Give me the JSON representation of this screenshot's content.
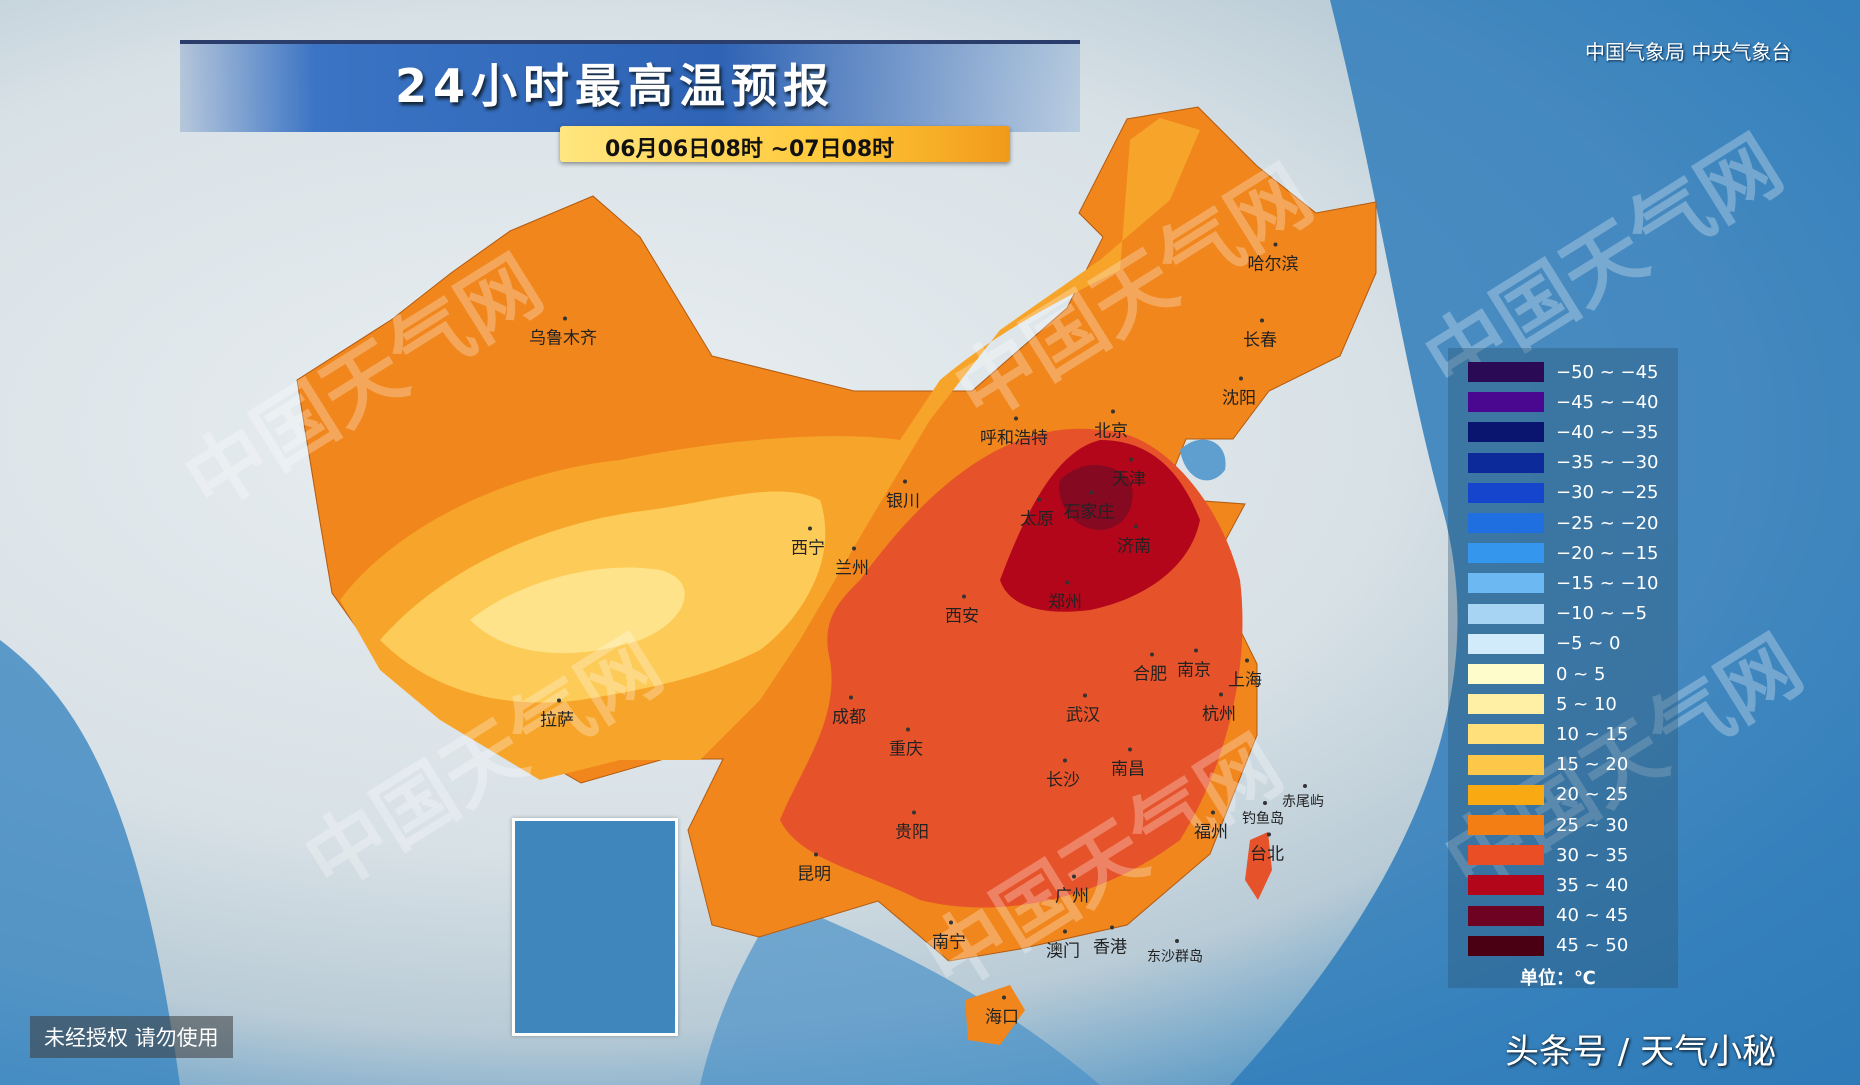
{
  "header": {
    "title": "24小时最高温预报",
    "date_range": "06月06日08时 ~07日08时",
    "organization": "中国气象局 中央气象台"
  },
  "cities": [
    {
      "name": "乌鲁木齐"
    },
    {
      "name": "哈尔滨"
    },
    {
      "name": "长春"
    },
    {
      "name": "沈阳"
    },
    {
      "name": "呼和浩特"
    },
    {
      "name": "北京"
    },
    {
      "name": "天津"
    },
    {
      "name": "银川"
    },
    {
      "name": "太原"
    },
    {
      "name": "石家庄"
    },
    {
      "name": "济南"
    },
    {
      "name": "西宁"
    },
    {
      "name": "兰州"
    },
    {
      "name": "郑州"
    },
    {
      "name": "西安"
    },
    {
      "name": "合肥"
    },
    {
      "name": "南京"
    },
    {
      "name": "上海"
    },
    {
      "name": "拉萨"
    },
    {
      "name": "成都"
    },
    {
      "name": "武汉"
    },
    {
      "name": "杭州"
    },
    {
      "name": "重庆"
    },
    {
      "name": "长沙"
    },
    {
      "name": "南昌"
    },
    {
      "name": "贵阳"
    },
    {
      "name": "福州"
    },
    {
      "name": "赤尾屿"
    },
    {
      "name": "钓鱼岛"
    },
    {
      "name": "台北"
    },
    {
      "name": "昆明"
    },
    {
      "name": "广州"
    },
    {
      "name": "南宁"
    },
    {
      "name": "澳门"
    },
    {
      "name": "香港"
    },
    {
      "name": "东沙群岛"
    },
    {
      "name": "海口"
    }
  ],
  "legend": {
    "unit": "单位：℃",
    "items": [
      {
        "label": "−50 ~ −45",
        "color": "#2a0a55"
      },
      {
        "label": "−45 ~ −40",
        "color": "#4a0890"
      },
      {
        "label": "−40 ~ −35",
        "color": "#0a1570"
      },
      {
        "label": "−35 ~ −30",
        "color": "#0c2a9a"
      },
      {
        "label": "−30 ~ −25",
        "color": "#1445cc"
      },
      {
        "label": "−25 ~ −20",
        "color": "#1f6fe0"
      },
      {
        "label": "−20 ~ −15",
        "color": "#3596ee"
      },
      {
        "label": "−15 ~ −10",
        "color": "#6cb8f2"
      },
      {
        "label": "−10 ~ −5",
        "color": "#a8d4f4"
      },
      {
        "label": "−5 ~ 0",
        "color": "#d2ebfa"
      },
      {
        "label": "0 ~ 5",
        "color": "#fffccb"
      },
      {
        "label": "5 ~ 10",
        "color": "#fff0a6"
      },
      {
        "label": "10 ~ 15",
        "color": "#ffe07a"
      },
      {
        "label": "15 ~ 20",
        "color": "#fdc84a"
      },
      {
        "label": "20 ~ 25",
        "color": "#f9a912"
      },
      {
        "label": "25 ~ 30",
        "color": "#f37f14"
      },
      {
        "label": "30 ~ 35",
        "color": "#e94e25"
      },
      {
        "label": "35 ~ 40",
        "color": "#b4061a"
      },
      {
        "label": "40 ~ 45",
        "color": "#6e0222"
      },
      {
        "label": "45 ~ 50",
        "color": "#4a0012"
      }
    ]
  },
  "watermark": "中国天气网",
  "footer": {
    "notice": "未经授权 请勿使用",
    "source": "头条号 / 天气小秘"
  }
}
